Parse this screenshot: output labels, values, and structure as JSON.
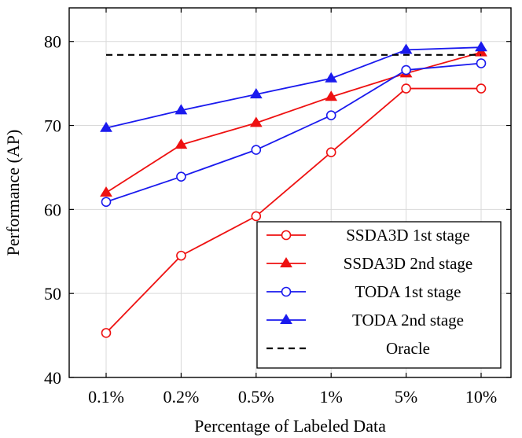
{
  "chart_data": {
    "type": "line",
    "title": "",
    "xlabel": "Percentage of Labeled Data",
    "ylabel": "Performance (AP)",
    "categories": [
      "0.1%",
      "0.2%",
      "0.5%",
      "1%",
      "5%",
      "10%"
    ],
    "ylim": [
      40,
      84
    ],
    "yticks": [
      40,
      50,
      60,
      70,
      80
    ],
    "grid": true,
    "legend_position": "bottom-right",
    "series": [
      {
        "name": "SSDA3D 1st stage",
        "color": "#ee1111",
        "marker": "circle-open",
        "dashed": false,
        "values": [
          45.3,
          54.5,
          59.2,
          66.8,
          74.4,
          74.4
        ]
      },
      {
        "name": "SSDA3D 2nd stage",
        "color": "#ee1111",
        "marker": "triangle",
        "dashed": false,
        "values": [
          62.0,
          67.7,
          70.3,
          73.4,
          76.2,
          78.7
        ]
      },
      {
        "name": "TODA 1st stage",
        "color": "#1a1aee",
        "marker": "circle-open",
        "dashed": false,
        "values": [
          60.9,
          63.9,
          67.1,
          71.2,
          76.6,
          77.4
        ]
      },
      {
        "name": "TODA 2nd stage",
        "color": "#1a1aee",
        "marker": "triangle",
        "dashed": false,
        "values": [
          69.7,
          71.8,
          73.7,
          75.6,
          79.0,
          79.3
        ]
      },
      {
        "name": "Oracle",
        "color": "#000000",
        "marker": "none",
        "dashed": true,
        "values": [
          78.4,
          78.4,
          78.4,
          78.4,
          78.4,
          78.4
        ]
      }
    ]
  }
}
